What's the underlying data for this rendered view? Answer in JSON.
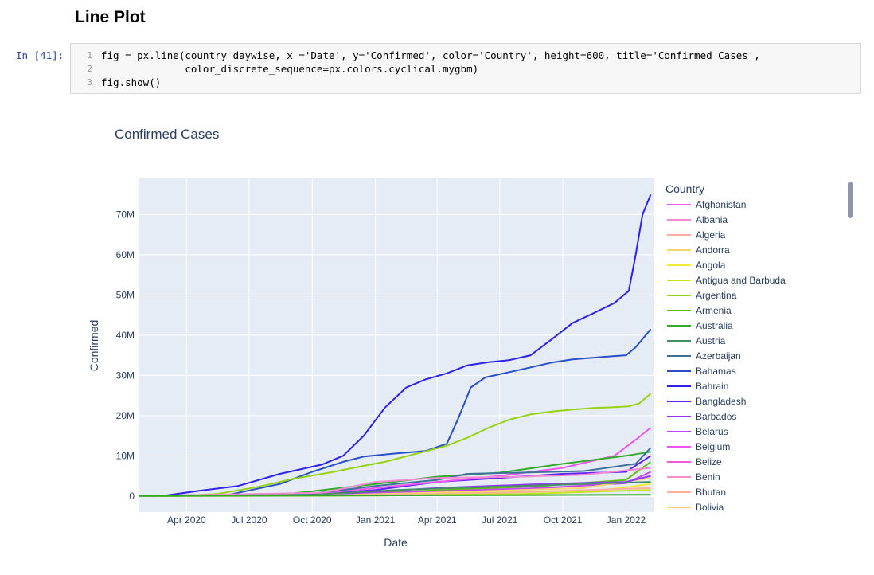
{
  "notebook": {
    "heading": "Line Plot",
    "prompt": "In [41]:",
    "code_lines": [
      "fig = px.line(country_daywise, x ='Date', y='Confirmed', color='Country', height=600, title='Confirmed Cases',",
      "              color_discrete_sequence=px.colors.cyclical.mygbm)",
      "fig.show()"
    ],
    "line_numbers": [
      "1",
      "2",
      "3"
    ]
  },
  "chart_data": {
    "type": "line",
    "title": "Confirmed Cases",
    "xlabel": "Date",
    "ylabel": "Confirmed",
    "x_ticks": [
      "Apr 2020",
      "Jul 2020",
      "Oct 2020",
      "Jan 2021",
      "Apr 2021",
      "Jul 2021",
      "Oct 2021",
      "Jan 2022"
    ],
    "y_ticks": [
      "0",
      "10M",
      "20M",
      "30M",
      "40M",
      "50M",
      "60M",
      "70M"
    ],
    "y_tick_values": [
      0,
      10,
      20,
      30,
      40,
      50,
      60,
      70
    ],
    "ylim": [
      -4,
      79
    ],
    "x_range": [
      "2020-01-22",
      "2022-02-10"
    ],
    "grid": true,
    "legend_title": "Country",
    "legend_position": "right",
    "legend": [
      {
        "name": "Afghanistan",
        "color": "#ef55f1"
      },
      {
        "name": "Albania",
        "color": "#f58bd3"
      },
      {
        "name": "Algeria",
        "color": "#fbafa1"
      },
      {
        "name": "Andorra",
        "color": "#fcd471"
      },
      {
        "name": "Angola",
        "color": "#f0ed35"
      },
      {
        "name": "Antigua and Barbuda",
        "color": "#c6e516"
      },
      {
        "name": "Argentina",
        "color": "#96d310"
      },
      {
        "name": "Armenia",
        "color": "#61c10b"
      },
      {
        "name": "Australia",
        "color": "#31ac28"
      },
      {
        "name": "Austria",
        "color": "#439064"
      },
      {
        "name": "Azerbaijan",
        "color": "#3d719a"
      },
      {
        "name": "Bahamas",
        "color": "#284ec8"
      },
      {
        "name": "Bahrain",
        "color": "#2e21ea"
      },
      {
        "name": "Bangladesh",
        "color": "#6324f5"
      },
      {
        "name": "Barbados",
        "color": "#9139fa"
      },
      {
        "name": "Belarus",
        "color": "#c543fa"
      },
      {
        "name": "Belgium",
        "color": "#ef55f1"
      },
      {
        "name": "Belize",
        "color": "#f058e0"
      },
      {
        "name": "Benin",
        "color": "#f58bd3"
      },
      {
        "name": "Bhutan",
        "color": "#fbafa1"
      },
      {
        "name": "Bolivia",
        "color": "#fcd471"
      }
    ],
    "series": [
      {
        "color": "#2e21ea",
        "points": [
          [
            "2020-01-22",
            0
          ],
          [
            "2020-03-01",
            0.1
          ],
          [
            "2020-04-15",
            1.2
          ],
          [
            "2020-06-15",
            2.5
          ],
          [
            "2020-08-15",
            5.5
          ],
          [
            "2020-10-15",
            7.8
          ],
          [
            "2020-11-15",
            10
          ],
          [
            "2020-12-15",
            15
          ],
          [
            "2021-01-15",
            22
          ],
          [
            "2021-02-15",
            27
          ],
          [
            "2021-03-15",
            29
          ],
          [
            "2021-04-15",
            30.5
          ],
          [
            "2021-05-15",
            32.5
          ],
          [
            "2021-06-15",
            33.3
          ],
          [
            "2021-07-15",
            33.8
          ],
          [
            "2021-08-15",
            35
          ],
          [
            "2021-09-15",
            39
          ],
          [
            "2021-10-15",
            43
          ],
          [
            "2021-11-15",
            45.5
          ],
          [
            "2021-12-15",
            48
          ],
          [
            "2022-01-05",
            51
          ],
          [
            "2022-01-15",
            60
          ],
          [
            "2022-01-25",
            70
          ],
          [
            "2022-02-06",
            75
          ]
        ]
      },
      {
        "color": "#284ec8",
        "points": [
          [
            "2020-01-22",
            0
          ],
          [
            "2020-03-15",
            0
          ],
          [
            "2020-06-01",
            0.3
          ],
          [
            "2020-08-15",
            3
          ],
          [
            "2020-10-01",
            6
          ],
          [
            "2020-11-15",
            8.5
          ],
          [
            "2020-12-15",
            9.8
          ],
          [
            "2021-02-01",
            10.6
          ],
          [
            "2021-03-15",
            11.2
          ],
          [
            "2021-04-15",
            13
          ],
          [
            "2021-05-01",
            19
          ],
          [
            "2021-05-20",
            27
          ],
          [
            "2021-06-10",
            29.5
          ],
          [
            "2021-07-15",
            30.8
          ],
          [
            "2021-08-15",
            32
          ],
          [
            "2021-09-15",
            33.2
          ],
          [
            "2021-10-15",
            34
          ],
          [
            "2021-11-15",
            34.4
          ],
          [
            "2021-12-15",
            34.8
          ],
          [
            "2022-01-01",
            35
          ],
          [
            "2022-01-15",
            37
          ],
          [
            "2022-02-06",
            41.5
          ]
        ]
      },
      {
        "color": "#96d310",
        "points": [
          [
            "2020-01-22",
            0
          ],
          [
            "2020-03-15",
            0
          ],
          [
            "2020-05-15",
            0.5
          ],
          [
            "2020-07-15",
            2.3
          ],
          [
            "2020-09-01",
            4.2
          ],
          [
            "2020-11-01",
            6
          ],
          [
            "2020-12-15",
            7.5
          ],
          [
            "2021-01-15",
            8.5
          ],
          [
            "2021-03-01",
            10.5
          ],
          [
            "2021-04-15",
            12.5
          ],
          [
            "2021-05-15",
            14.5
          ],
          [
            "2021-06-15",
            17
          ],
          [
            "2021-07-15",
            19
          ],
          [
            "2021-08-15",
            20.3
          ],
          [
            "2021-09-15",
            21
          ],
          [
            "2021-10-15",
            21.5
          ],
          [
            "2021-11-15",
            21.9
          ],
          [
            "2021-12-15",
            22.1
          ],
          [
            "2022-01-05",
            22.3
          ],
          [
            "2022-01-20",
            23
          ],
          [
            "2022-02-06",
            25.5
          ]
        ]
      },
      {
        "color": "#6324f5",
        "points": [
          [
            "2020-01-22",
            0
          ],
          [
            "2020-10-01",
            0.4
          ],
          [
            "2021-01-01",
            1.5
          ],
          [
            "2021-04-01",
            3.5
          ],
          [
            "2021-07-01",
            4.5
          ],
          [
            "2021-10-01",
            5.5
          ],
          [
            "2022-01-01",
            6
          ],
          [
            "2022-02-06",
            10
          ]
        ]
      },
      {
        "color": "#ef55f1",
        "points": [
          [
            "2020-01-22",
            0
          ],
          [
            "2020-10-01",
            0.5
          ],
          [
            "2021-01-01",
            2
          ],
          [
            "2021-04-01",
            3.5
          ],
          [
            "2021-07-01",
            5
          ],
          [
            "2021-10-01",
            7
          ],
          [
            "2021-12-15",
            10
          ],
          [
            "2022-01-15",
            14
          ],
          [
            "2022-02-06",
            17
          ]
        ]
      },
      {
        "color": "#31ac28",
        "points": [
          [
            "2020-01-22",
            0
          ],
          [
            "2020-09-01",
            0.6
          ],
          [
            "2021-01-01",
            3
          ],
          [
            "2021-04-01",
            4.8
          ],
          [
            "2021-07-01",
            5.8
          ],
          [
            "2021-10-01",
            8
          ],
          [
            "2022-01-01",
            10
          ],
          [
            "2022-02-06",
            11
          ]
        ]
      },
      {
        "color": "#3d719a",
        "points": [
          [
            "2020-01-22",
            0
          ],
          [
            "2020-10-01",
            0.6
          ],
          [
            "2021-01-01",
            2.5
          ],
          [
            "2021-04-01",
            4
          ],
          [
            "2021-05-15",
            5.5
          ],
          [
            "2021-08-01",
            5.8
          ],
          [
            "2021-11-01",
            6.2
          ],
          [
            "2022-01-15",
            8
          ],
          [
            "2022-02-06",
            12
          ]
        ]
      },
      {
        "color": "#61c10b",
        "points": [
          [
            "2020-01-22",
            0
          ],
          [
            "2020-10-01",
            0.3
          ],
          [
            "2021-03-01",
            1.2
          ],
          [
            "2021-09-01",
            2.5
          ],
          [
            "2022-01-01",
            4
          ],
          [
            "2022-02-06",
            8.5
          ]
        ]
      },
      {
        "color": "#c543fa",
        "points": [
          [
            "2020-01-22",
            0
          ],
          [
            "2020-11-01",
            0.3
          ],
          [
            "2021-03-01",
            1
          ],
          [
            "2021-09-01",
            2
          ],
          [
            "2022-01-01",
            3.2
          ],
          [
            "2022-02-06",
            6
          ]
        ]
      },
      {
        "color": "#fcd471",
        "points": [
          [
            "2020-01-22",
            0
          ],
          [
            "2020-11-01",
            0.2
          ],
          [
            "2021-05-01",
            1
          ],
          [
            "2021-11-01",
            2
          ],
          [
            "2022-02-06",
            4.5
          ]
        ]
      },
      {
        "color": "#f0ed35",
        "points": [
          [
            "2020-01-22",
            0
          ],
          [
            "2020-12-01",
            0.2
          ],
          [
            "2021-06-01",
            0.8
          ],
          [
            "2021-12-01",
            1.5
          ],
          [
            "2022-02-06",
            3
          ]
        ]
      },
      {
        "color": "#9139fa",
        "points": [
          [
            "2020-01-22",
            0
          ],
          [
            "2020-11-01",
            0.4
          ],
          [
            "2021-04-01",
            2
          ],
          [
            "2021-09-01",
            3
          ],
          [
            "2022-01-01",
            3.5
          ],
          [
            "2022-02-06",
            5
          ]
        ]
      },
      {
        "color": "#fbafa1",
        "points": [
          [
            "2020-01-22",
            0
          ],
          [
            "2021-01-01",
            0.3
          ],
          [
            "2021-07-01",
            0.8
          ],
          [
            "2022-02-06",
            2
          ]
        ]
      },
      {
        "color": "#f58bd3",
        "points": [
          [
            "2020-01-22",
            0
          ],
          [
            "2020-10-15",
            0.8
          ],
          [
            "2021-01-01",
            3.5
          ],
          [
            "2021-04-01",
            4.5
          ],
          [
            "2021-08-01",
            4.8
          ],
          [
            "2021-11-01",
            5.3
          ],
          [
            "2022-02-06",
            7
          ]
        ]
      },
      {
        "color": "#439064",
        "points": [
          [
            "2020-01-22",
            0
          ],
          [
            "2020-10-01",
            0.3
          ],
          [
            "2021-02-01",
            1.5
          ],
          [
            "2021-08-01",
            2.5
          ],
          [
            "2022-02-06",
            3.5
          ]
        ]
      },
      {
        "color": "#c6e516",
        "points": [
          [
            "2020-01-22",
            0
          ],
          [
            "2021-01-01",
            0.1
          ],
          [
            "2021-08-01",
            0.5
          ],
          [
            "2022-02-06",
            1.5
          ]
        ]
      },
      {
        "color": "#31ac28",
        "points": [
          [
            "2020-01-22",
            0
          ],
          [
            "2022-02-06",
            0.3
          ]
        ]
      }
    ]
  }
}
